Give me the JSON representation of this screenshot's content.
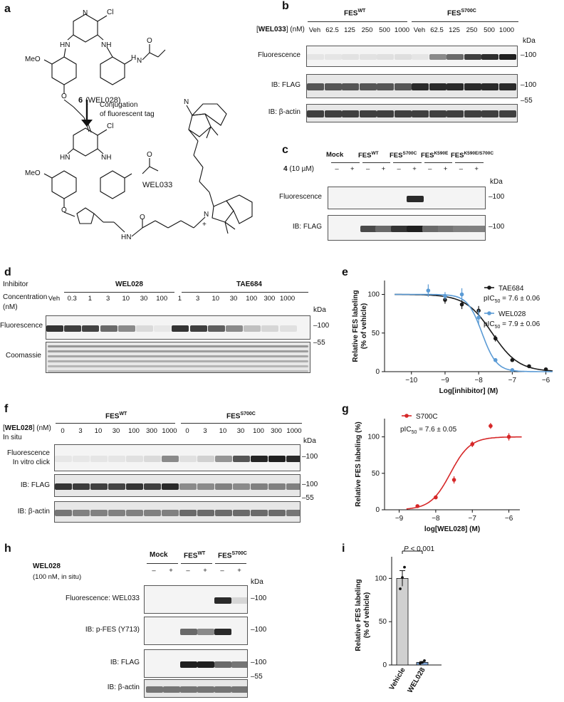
{
  "panels": {
    "a": {
      "label": "a",
      "compound_number": "6",
      "compound_name": "(WEL028)",
      "arrow_label_1": "Conjugation",
      "arrow_label_2": "of fluorescent tag",
      "product_name": "WEL033",
      "atoms": {
        "cl": "Cl",
        "nh": "NH",
        "hn": "HN",
        "h": "H",
        "n": "N",
        "o": "O",
        "meo": "MeO",
        "plus": "+"
      }
    },
    "b": {
      "label": "b",
      "group_wt": "FES",
      "group_wt_sup": "WT",
      "group_mut": "FES",
      "group_mut_sup": "S700C",
      "conc_label_pre": "[",
      "conc_label_bold": "WEL033",
      "conc_label_post": "] (nM)",
      "columns": [
        "Veh",
        "62.5",
        "125",
        "250",
        "500",
        "1000",
        "Veh",
        "62.5",
        "125",
        "250",
        "500",
        "1000"
      ],
      "kda": "kDa",
      "rows": [
        {
          "label": "Fluorescence",
          "mw": "–100",
          "intensity": [
            0.03,
            0.03,
            0.04,
            0.04,
            0.05,
            0.06,
            0.03,
            0.45,
            0.6,
            0.8,
            0.88,
            0.95
          ]
        },
        {
          "label": "IB: FLAG",
          "mw": "–100",
          "intensity": [
            0.7,
            0.7,
            0.7,
            0.7,
            0.7,
            0.7,
            0.9,
            0.9,
            0.9,
            0.9,
            0.9,
            0.9
          ]
        },
        {
          "label": "IB: β-actin",
          "mw": "",
          "intensity": [
            0.8,
            0.8,
            0.8,
            0.8,
            0.8,
            0.8,
            0.8,
            0.8,
            0.8,
            0.8,
            0.8,
            0.8
          ]
        }
      ],
      "mw_55": "–55"
    },
    "c": {
      "label": "c",
      "groups": [
        {
          "name": "Mock",
          "sup": ""
        },
        {
          "name": "FES",
          "sup": "WT"
        },
        {
          "name": "FES",
          "sup": "S700C"
        },
        {
          "name": "FES",
          "sup": "K590E"
        },
        {
          "name": "FES",
          "sup": "K590E/S700C"
        }
      ],
      "treat_label_bold": "4",
      "treat_label_rest": " (10 µM)",
      "signs": [
        "–",
        "+",
        "–",
        "+",
        "–",
        "+",
        "–",
        "+",
        "–",
        "+"
      ],
      "kda": "kDa",
      "rows": [
        {
          "label": "Fluorescence",
          "mw": "–100",
          "intensity": [
            0,
            0,
            0,
            0,
            0,
            0.9,
            0,
            0,
            0,
            0
          ]
        },
        {
          "label": "IB: FLAG",
          "mw": "–100",
          "intensity": [
            0,
            0,
            0.75,
            0.6,
            0.85,
            0.95,
            0.6,
            0.55,
            0.5,
            0.5
          ]
        }
      ]
    },
    "d": {
      "label": "d",
      "inhibitor_label": "Inhibitor",
      "conc_label": "Concentration",
      "unit_label": "(nM)",
      "group1": "WEL028",
      "group2": "TAE684",
      "columns": [
        "Veh",
        "0.3",
        "1",
        "3",
        "10",
        "30",
        "100",
        "1",
        "3",
        "10",
        "30",
        "100",
        "300",
        "1000"
      ],
      "kda": "kDa",
      "rows": [
        {
          "label": "Fluorescence",
          "mw": "–100",
          "intensity": [
            0.85,
            0.8,
            0.78,
            0.6,
            0.45,
            0.08,
            0.02,
            0.85,
            0.8,
            0.65,
            0.45,
            0.2,
            0.1,
            0.05
          ]
        },
        {
          "label": "Coomassie",
          "mw": "–55",
          "intensity": []
        }
      ]
    },
    "e": {
      "label": "e",
      "pic50_1": "pIC",
      "pic50_1_sub": "50",
      "pic50_1_val": " = 7.6 ± 0.06",
      "pic50_2": "pIC",
      "pic50_2_sub": "50",
      "pic50_2_val": " = 7.9 ± 0.06"
    },
    "f": {
      "label": "f",
      "group_wt": "FES",
      "group_wt_sup": "WT",
      "group_mut": "FES",
      "group_mut_sup": "S700C",
      "conc_label_pre": "[",
      "conc_label_bold": "WEL028",
      "conc_label_post": "] (nM)",
      "insitu": "In situ",
      "columns": [
        "0",
        "3",
        "10",
        "30",
        "100",
        "300",
        "1000",
        "0",
        "3",
        "10",
        "30",
        "100",
        "300",
        "1000"
      ],
      "kda": "kDa",
      "rows": [
        {
          "label": "Fluorescence",
          "label2": "In vitro click",
          "mw": "–100",
          "intensity": [
            0.02,
            0.02,
            0.03,
            0.03,
            0.05,
            0.08,
            0.45,
            0.05,
            0.12,
            0.4,
            0.7,
            0.92,
            0.95,
            0.9
          ]
        },
        {
          "label": "IB: FLAG",
          "label2": "",
          "mw": "–100",
          "intensity": [
            0.85,
            0.82,
            0.8,
            0.78,
            0.85,
            0.8,
            0.9,
            0.45,
            0.45,
            0.5,
            0.45,
            0.5,
            0.5,
            0.5
          ]
        },
        {
          "label": "IB: β-actin",
          "label2": "",
          "mw": "",
          "intensity": [
            0.55,
            0.5,
            0.5,
            0.5,
            0.5,
            0.5,
            0.5,
            0.6,
            0.6,
            0.6,
            0.6,
            0.6,
            0.6,
            0.55
          ]
        }
      ],
      "mw_55": "–55"
    },
    "g": {
      "label": "g",
      "pic50": "pIC",
      "pic50_sub": "50",
      "pic50_val": " = 7.6 ± 0.05"
    },
    "h": {
      "label": "h",
      "treat_label": "WEL028",
      "treat_label2": "(100 nM, in situ)",
      "groups": [
        {
          "name": "Mock",
          "sup": ""
        },
        {
          "name": "FES",
          "sup": "WT"
        },
        {
          "name": "FES",
          "sup": "S700C"
        }
      ],
      "signs": [
        "–",
        "+",
        "–",
        "+",
        "–",
        "+"
      ],
      "kda": "kDa",
      "rows": [
        {
          "label": "Fluorescence: WEL033",
          "mw": "–100",
          "intensity": [
            0,
            0,
            0,
            0,
            0.9,
            0.1
          ]
        },
        {
          "label": "IB: p-FES (Y713)",
          "mw": "–100",
          "intensity": [
            0,
            0,
            0.6,
            0.45,
            0.9,
            0
          ]
        },
        {
          "label": "IB: FLAG",
          "mw": "–100",
          "intensity": [
            0,
            0,
            0.95,
            0.95,
            0.6,
            0.55
          ]
        },
        {
          "label": "IB: β-actin",
          "mw": "",
          "intensity": [
            0.55,
            0.55,
            0.55,
            0.55,
            0.55,
            0.55
          ]
        }
      ],
      "mw_55": "–55"
    },
    "i": {
      "label": "i",
      "pvalue_pre": "P",
      "pvalue_post": " < 0.001"
    }
  },
  "chart_data": [
    {
      "type": "line",
      "panel": "e",
      "xlabel": "Log[inhibitor] (M)",
      "ylabel": "Relative FES labeling (% of vehicle)",
      "xlim": [
        -10.8,
        -5.8
      ],
      "ylim": [
        0,
        118
      ],
      "xticks": [
        -10,
        -9,
        -8,
        -7,
        -6
      ],
      "yticks": [
        0,
        50,
        100
      ],
      "legend": "top-right",
      "series": [
        {
          "name": "TAE684",
          "color": "#1a1a1a",
          "pic50": 7.6,
          "x": [
            -9,
            -8.5,
            -8,
            -7.5,
            -7,
            -6.5,
            -6
          ],
          "y": [
            93,
            87,
            79,
            43,
            15,
            7,
            3
          ],
          "err": [
            5,
            6,
            6,
            4,
            2,
            1,
            1
          ]
        },
        {
          "name": "WEL028",
          "color": "#5b9bd5",
          "pic50": 7.9,
          "x": [
            -9.5,
            -9,
            -8.5,
            -8,
            -7.5,
            -7
          ],
          "y": [
            105,
            98,
            100,
            70,
            15,
            2
          ],
          "err": [
            8,
            5,
            8,
            10,
            2,
            1
          ]
        }
      ]
    },
    {
      "type": "line",
      "panel": "g",
      "xlabel": "log[WEL028] (M)",
      "ylabel": "Relative FES labeling (%)",
      "xlim": [
        -9.4,
        -5.7
      ],
      "ylim": [
        0,
        125
      ],
      "xticks": [
        -9,
        -8,
        -7,
        -6
      ],
      "yticks": [
        0,
        50,
        100
      ],
      "legend": "top-left",
      "series": [
        {
          "name": "S700C",
          "color": "#d62728",
          "pic50": 7.6,
          "x": [
            -8.5,
            -8,
            -7.5,
            -7,
            -6.5,
            -6
          ],
          "y": [
            5,
            17,
            41,
            90,
            115,
            100
          ],
          "err": [
            1,
            1,
            5,
            4,
            4,
            5
          ]
        }
      ]
    },
    {
      "type": "bar",
      "panel": "i",
      "categories": [
        "Vehicle",
        "WEL028"
      ],
      "values": [
        100,
        3
      ],
      "err": [
        9,
        1
      ],
      "points": [
        [
          88,
          101,
          113
        ],
        [
          2,
          3,
          5
        ]
      ],
      "ylabel": "Relative FES labeling (% of vehicle)",
      "ylim": [
        0,
        125
      ],
      "yticks": [
        0,
        50,
        100
      ],
      "colors": {
        "vehicle": "#d0d0d0",
        "wel028": "#7fa7d9"
      }
    }
  ]
}
